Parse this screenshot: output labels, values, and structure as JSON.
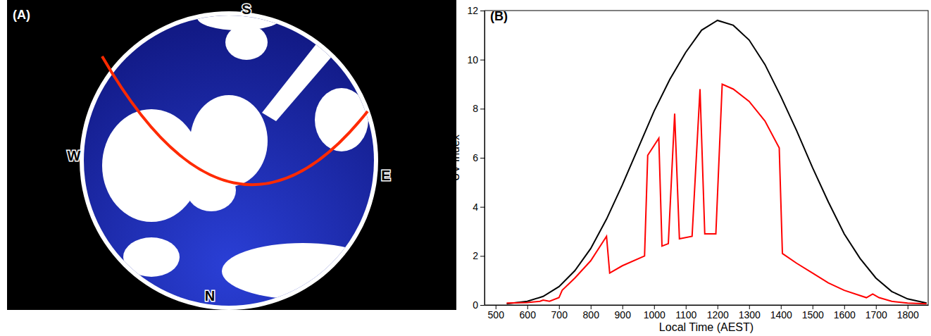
{
  "chart_data": [
    {
      "type": "hemispherical-photo",
      "title": "(A)",
      "compass": [
        "S",
        "W",
        "E",
        "N"
      ]
    },
    {
      "type": "line",
      "title": "(B)",
      "x_label": "Local Time (AEST)",
      "y_label": "UV Index",
      "xlim": [
        465,
        1865
      ],
      "ylim": [
        0,
        12
      ],
      "xticks": [
        500,
        600,
        700,
        800,
        900,
        1000,
        1100,
        1200,
        1300,
        1400,
        1500,
        1600,
        1700,
        1800
      ],
      "yticks": [
        0,
        2,
        4,
        6,
        8,
        10,
        12
      ],
      "series": [
        {
          "color": "#000000",
          "x": [
            535,
            600,
            650,
            700,
            750,
            800,
            850,
            900,
            950,
            1000,
            1050,
            1100,
            1150,
            1200,
            1250,
            1300,
            1350,
            1400,
            1450,
            1500,
            1550,
            1600,
            1650,
            1700,
            1750,
            1800,
            1860
          ],
          "values": [
            0.05,
            0.15,
            0.35,
            0.75,
            1.4,
            2.3,
            3.5,
            4.9,
            6.4,
            7.9,
            9.2,
            10.3,
            11.2,
            11.6,
            11.4,
            10.8,
            9.8,
            8.5,
            7.1,
            5.6,
            4.2,
            2.9,
            1.9,
            1.1,
            0.55,
            0.25,
            0.08
          ]
        },
        {
          "color": "#ff0000",
          "x": [
            535,
            600,
            640,
            650,
            670,
            700,
            710,
            750,
            800,
            850,
            860,
            900,
            970,
            980,
            1015,
            1025,
            1045,
            1065,
            1080,
            1120,
            1145,
            1160,
            1195,
            1215,
            1250,
            1300,
            1350,
            1395,
            1405,
            1450,
            1500,
            1550,
            1600,
            1670,
            1690,
            1710,
            1750,
            1800,
            1860
          ],
          "values": [
            0.08,
            0.1,
            0.15,
            0.2,
            0.15,
            0.3,
            0.6,
            1.1,
            1.8,
            2.8,
            1.3,
            1.6,
            2.0,
            6.1,
            6.8,
            2.4,
            2.5,
            7.8,
            2.7,
            2.8,
            8.8,
            2.9,
            2.9,
            9.0,
            8.8,
            8.3,
            7.5,
            6.4,
            2.1,
            1.7,
            1.3,
            0.9,
            0.6,
            0.3,
            0.45,
            0.3,
            0.15,
            0.08,
            0.05
          ]
        }
      ]
    }
  ]
}
